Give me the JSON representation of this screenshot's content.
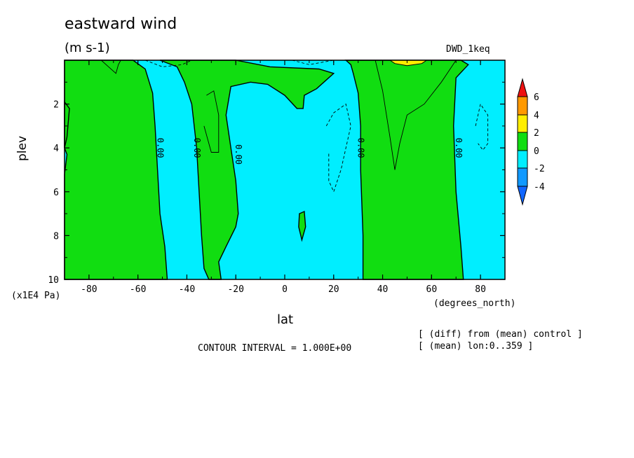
{
  "chart_data": {
    "type": "heatmap",
    "title": "eastward wind",
    "units": "(m s-1)",
    "dataset": "DWD_1keq",
    "xlabel": "lat",
    "xunit": "(degrees_north)",
    "ylabel": "plev",
    "yunit": "(x1E4 Pa)",
    "xlim": [
      -90,
      90
    ],
    "ylim": [
      0,
      10
    ],
    "y_inverted": true,
    "xticks": [
      "-80",
      "-60",
      "-40",
      "-20",
      "0",
      "20",
      "40",
      "60",
      "80"
    ],
    "yticks": [
      "2",
      "4",
      "6",
      "8",
      "10"
    ],
    "contour_interval_text": "CONTOUR INTERVAL = 1.000E+00",
    "notes": [
      "[ (diff) from (mean) control ]",
      "[ (mean) lon:0..359 ]"
    ],
    "contour_labels": [
      {
        "text": "0.00",
        "lat": -52,
        "plev": 4.0
      },
      {
        "text": "0.00",
        "lat": -37,
        "plev": 4.0
      },
      {
        "text": "0.00",
        "lat": -20,
        "plev": 4.3
      },
      {
        "text": "0.00",
        "lat": 30,
        "plev": 4.0
      },
      {
        "text": "0.00",
        "lat": 70,
        "plev": 4.0
      }
    ],
    "colorbar": {
      "levels": [
        "6",
        "4",
        "2",
        "0",
        "-2",
        "-4"
      ],
      "colors": {
        "gt6": "#ee1111",
        "4to6": "#ff9900",
        "2to4": "#ffee00",
        "0to2": "#11dd11",
        "m2to0": "#00eeff",
        "m4tom2": "#1199ff",
        "ltm4": "#1166ff"
      }
    },
    "regions": [
      {
        "sign": "positive",
        "color": "0to2",
        "description": "southern high latitudes band",
        "lat_range": [
          -90,
          -50
        ]
      },
      {
        "sign": "positive",
        "color": "0to2",
        "description": "band near 35S-20S",
        "lat_range": [
          -36,
          -20
        ]
      },
      {
        "sign": "positive",
        "color": "0to2",
        "description": "upper band 20S-10N",
        "lat_range": [
          -25,
          10
        ],
        "plev_range": [
          0,
          2.2
        ]
      },
      {
        "sign": "positive",
        "color": "0to2",
        "description": "northern midlatitude band",
        "lat_range": [
          32,
          73
        ]
      },
      {
        "sign": "positive",
        "color": "2to4",
        "description": "top maximum near 50N",
        "lat_range": [
          43,
          58
        ],
        "plev_range": [
          0,
          0.2
        ]
      },
      {
        "sign": "negative",
        "color": "m2to0",
        "description": "background negative",
        "lat_range": [
          -90,
          90
        ]
      }
    ]
  }
}
